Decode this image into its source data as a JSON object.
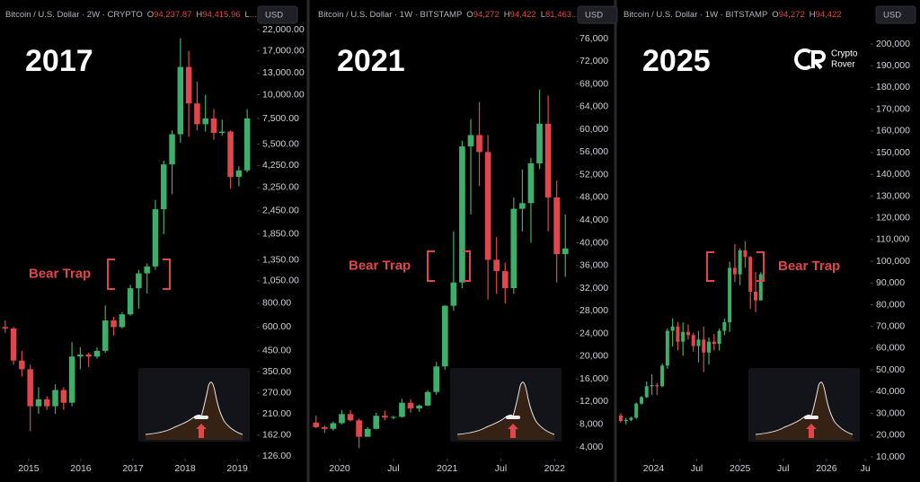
{
  "chart_data": [
    {
      "type": "candlestick",
      "header": "Bitcoin / U.S. Dollar · 2W · CRYPTO",
      "ohlc": [
        {
          "key": "O",
          "value": "94,237.87"
        },
        {
          "key": "H",
          "value": "94,415.96"
        },
        {
          "key": "L",
          "value": "..."
        }
      ],
      "currency": "USD",
      "label": "2017",
      "annotation": "Bear Trap",
      "log_scale": true,
      "grid": false,
      "up_color": "#3fae6a",
      "down_color": "#e0474c",
      "ohlc_color": "#e0474c",
      "x": [
        2014.55,
        2014.71,
        2014.87,
        2015.03,
        2015.19,
        2015.35,
        2015.51,
        2015.67,
        2015.83,
        2015.99,
        2016.15,
        2016.31,
        2016.47,
        2016.63,
        2016.79,
        2016.95,
        2017.11,
        2017.27,
        2017.43,
        2017.59,
        2017.75,
        2017.91,
        2018.07,
        2018.23,
        2018.39,
        2018.55,
        2018.71,
        2018.87,
        2019.03,
        2019.19
      ],
      "open": [
        600,
        590,
        400,
        360,
        230,
        250,
        230,
        280,
        240,
        420,
        430,
        420,
        450,
        650,
        600,
        700,
        960,
        1150,
        1250,
        2500,
        4300,
        6200,
        14000,
        9000,
        7000,
        7500,
        6300,
        6400,
        3700,
        4000
      ],
      "high": [
        650,
        600,
        450,
        380,
        290,
        260,
        300,
        290,
        500,
        470,
        440,
        470,
        780,
        680,
        720,
        1000,
        1200,
        1300,
        2800,
        4500,
        6500,
        19800,
        17000,
        11700,
        10000,
        8400,
        7400,
        6500,
        4200,
        8400
      ],
      "low": [
        560,
        380,
        330,
        170,
        210,
        220,
        210,
        220,
        230,
        360,
        370,
        410,
        440,
        540,
        590,
        690,
        750,
        900,
        1200,
        1850,
        3000,
        5600,
        6000,
        6500,
        6400,
        5800,
        6100,
        3200,
        3300,
        3900
      ],
      "close": [
        590,
        400,
        360,
        230,
        250,
        230,
        280,
        240,
        420,
        430,
        420,
        450,
        650,
        600,
        700,
        960,
        1150,
        1250,
        2500,
        4300,
        6200,
        14000,
        9000,
        7000,
        7500,
        6300,
        6400,
        3700,
        4000,
        7500
      ],
      "xlim": [
        2014.45,
        2019.36
      ],
      "xticks": [
        2015,
        2016,
        2017,
        2018,
        2019
      ],
      "ylim": [
        126,
        22000
      ],
      "yticks": [
        {
          "value": 126,
          "label": "126.00"
        },
        {
          "value": 162,
          "label": "162.00"
        },
        {
          "value": 210,
          "label": "210.00"
        },
        {
          "value": 270,
          "label": "270.00"
        },
        {
          "value": 350,
          "label": "350.00"
        },
        {
          "value": 450,
          "label": "450.00"
        },
        {
          "value": 600,
          "label": "600.00"
        },
        {
          "value": 800,
          "label": "800.00"
        },
        {
          "value": 1050,
          "label": "1,050.00"
        },
        {
          "value": 1350,
          "label": "1,350.00"
        },
        {
          "value": 1850,
          "label": "1,850.00"
        },
        {
          "value": 2450,
          "label": "2,450.00"
        },
        {
          "value": 3250,
          "label": "3,250.00"
        },
        {
          "value": 4250,
          "label": "4,250.00"
        },
        {
          "value": 5500,
          "label": "5,500.00"
        },
        {
          "value": 7500,
          "label": "7,500.00"
        },
        {
          "value": 10000,
          "label": "10,000.00"
        },
        {
          "value": 13000,
          "label": "13,000.00"
        },
        {
          "value": 17000,
          "label": "17,000.00"
        },
        {
          "value": 22000,
          "label": "22,000.00"
        }
      ]
    },
    {
      "type": "candlestick",
      "header": "Bitcoin / U.S. Dollar · 1W · BITSTAMP",
      "ohlc": [
        {
          "key": "O",
          "value": "94,272"
        },
        {
          "key": "H",
          "value": "94,422"
        },
        {
          "key": "L",
          "value": "81,463..."
        }
      ],
      "currency": "USD",
      "label": "2021",
      "annotation": "Bear Trap",
      "log_scale": false,
      "grid": false,
      "up_color": "#3fae6a",
      "down_color": "#e0474c",
      "ohlc_color": "#e0474c",
      "x": [
        2019.78,
        2019.86,
        2019.94,
        2020.02,
        2020.1,
        2020.18,
        2020.26,
        2020.34,
        2020.42,
        2020.5,
        2020.58,
        2020.66,
        2020.74,
        2020.82,
        2020.9,
        2020.98,
        2021.06,
        2021.14,
        2021.22,
        2021.3,
        2021.38,
        2021.46,
        2021.54,
        2021.62,
        2021.7,
        2021.78,
        2021.86,
        2021.94,
        2022.02,
        2022.1
      ],
      "open": [
        8300,
        7500,
        7200,
        8200,
        9800,
        8700,
        5800,
        7200,
        9500,
        9200,
        9300,
        11800,
        10800,
        11300,
        13700,
        18200,
        28900,
        33000,
        57000,
        59000,
        56000,
        37000,
        35000,
        32000,
        46000,
        47000,
        54000,
        61000,
        48000,
        38000
      ],
      "high": [
        9500,
        7800,
        8500,
        10500,
        10500,
        9000,
        7500,
        10000,
        10400,
        9500,
        12500,
        12400,
        11500,
        14000,
        19000,
        29000,
        42000,
        58000,
        61800,
        64800,
        59000,
        41000,
        36500,
        48000,
        52900,
        55000,
        67000,
        66000,
        51000,
        45000
      ],
      "low": [
        7300,
        6500,
        6900,
        8000,
        8500,
        3800,
        5800,
        7100,
        8700,
        8900,
        9200,
        10000,
        10200,
        11200,
        13200,
        17600,
        28000,
        32000,
        45000,
        50000,
        30000,
        31000,
        29300,
        31000,
        42000,
        40000,
        53000,
        42000,
        33000,
        34000
      ],
      "close": [
        7500,
        7200,
        8200,
        9800,
        8700,
        5800,
        7200,
        9500,
        9200,
        9300,
        11800,
        10800,
        11300,
        13700,
        18200,
        28900,
        33000,
        57000,
        59000,
        56000,
        37000,
        35000,
        32000,
        46000,
        47000,
        54000,
        61000,
        48000,
        38000,
        39000
      ],
      "xlim": [
        2019.74,
        2022.19
      ],
      "xticks": [
        2020,
        {
          "value": 2020.5,
          "label": "Jul"
        },
        2021,
        {
          "value": 2021.5,
          "label": "Jul"
        },
        2022
      ],
      "ylim": [
        4000,
        76000
      ],
      "yticks": [
        {
          "value": 4000,
          "label": "4,000"
        },
        {
          "value": 8000,
          "label": "8,000"
        },
        {
          "value": 12000,
          "label": "12,000"
        },
        {
          "value": 16000,
          "label": "16,000"
        },
        {
          "value": 20000,
          "label": "20,000"
        },
        {
          "value": 24000,
          "label": "24,000"
        },
        {
          "value": 28000,
          "label": "28,000"
        },
        {
          "value": 32000,
          "label": "32,000"
        },
        {
          "value": 36000,
          "label": "36,000"
        },
        {
          "value": 40000,
          "label": "40,000"
        },
        {
          "value": 44000,
          "label": "44,000"
        },
        {
          "value": 48000,
          "label": "48,000"
        },
        {
          "value": 52000,
          "label": "52,000"
        },
        {
          "value": 56000,
          "label": "56,000"
        },
        {
          "value": 60000,
          "label": "60,000"
        },
        {
          "value": 64000,
          "label": "64,000"
        },
        {
          "value": 68000,
          "label": "68,000"
        },
        {
          "value": 72000,
          "label": "72,000"
        },
        {
          "value": 76000,
          "label": "76,000"
        }
      ]
    },
    {
      "type": "candlestick",
      "header": "Bitcoin / U.S. Dollar · 1W · BITSTAMP",
      "ohlc": [
        {
          "key": "O",
          "value": "94,272"
        },
        {
          "key": "H",
          "value": "94,422"
        }
      ],
      "currency": "USD",
      "label": "2025",
      "annotation": "Bear Trap",
      "logo": [
        "Crypto",
        "Rover"
      ],
      "log_scale": false,
      "grid": false,
      "up_color": "#3fae6a",
      "down_color": "#e0474c",
      "ohlc_color": "#e0474c",
      "x": [
        2023.62,
        2023.68,
        2023.74,
        2023.8,
        2023.86,
        2023.92,
        2023.98,
        2024.04,
        2024.1,
        2024.16,
        2024.22,
        2024.28,
        2024.34,
        2024.4,
        2024.46,
        2024.52,
        2024.58,
        2024.64,
        2024.7,
        2024.76,
        2024.82,
        2024.88,
        2024.94,
        2025.0,
        2025.06,
        2025.12,
        2025.18,
        2025.24
      ],
      "open": [
        29000,
        26500,
        27000,
        28000,
        34500,
        37500,
        42500,
        43000,
        42500,
        52000,
        68000,
        70000,
        63000,
        67500,
        66000,
        61000,
        64000,
        58000,
        63000,
        62000,
        68000,
        72000,
        97000,
        94000,
        105000,
        102000,
        86000,
        82000
      ],
      "high": [
        30000,
        28000,
        28500,
        35000,
        38000,
        44700,
        48000,
        44000,
        53000,
        69000,
        73700,
        72000,
        71900,
        71000,
        67000,
        68000,
        70000,
        65000,
        66500,
        69000,
        73600,
        99800,
        108000,
        106000,
        109300,
        102500,
        95000,
        95000
      ],
      "low": [
        25800,
        25000,
        26500,
        27500,
        34000,
        37000,
        38500,
        38500,
        42000,
        50500,
        60800,
        59000,
        56500,
        64000,
        58400,
        53500,
        49000,
        52500,
        58900,
        58900,
        66000,
        67500,
        90500,
        89000,
        97000,
        78200,
        76600,
        82000
      ],
      "close": [
        26500,
        27000,
        28000,
        34500,
        37500,
        42500,
        43000,
        42500,
        52000,
        68000,
        70000,
        63000,
        67500,
        66000,
        61000,
        64000,
        58000,
        63000,
        62000,
        68000,
        72000,
        97000,
        94000,
        105000,
        102000,
        86000,
        82000,
        94000
      ],
      "xlim": [
        2023.59,
        2026.5
      ],
      "xticks": [
        2024,
        {
          "value": 2024.5,
          "label": "Jul"
        },
        2025,
        {
          "value": 2025.5,
          "label": "Jul"
        },
        2026,
        {
          "value": 2026.45,
          "label": "Ju"
        }
      ],
      "ylim": [
        10000,
        200000
      ],
      "yticks": [
        {
          "value": 10000,
          "label": "10,000"
        },
        {
          "value": 20000,
          "label": "20,000"
        },
        {
          "value": 30000,
          "label": "30,000"
        },
        {
          "value": 40000,
          "label": "40,000"
        },
        {
          "value": 50000,
          "label": "50,000"
        },
        {
          "value": 60000,
          "label": "60,000"
        },
        {
          "value": 70000,
          "label": "70,000"
        },
        {
          "value": 80000,
          "label": "80,000"
        },
        {
          "value": 90000,
          "label": "90,000"
        },
        {
          "value": 100000,
          "label": "100,000"
        },
        {
          "value": 110000,
          "label": "110,000"
        },
        {
          "value": 120000,
          "label": "120,000"
        },
        {
          "value": 130000,
          "label": "130,000"
        },
        {
          "value": 140000,
          "label": "140,000"
        },
        {
          "value": 150000,
          "label": "150,000"
        },
        {
          "value": 160000,
          "label": "160,000"
        },
        {
          "value": 170000,
          "label": "170,000"
        },
        {
          "value": 180000,
          "label": "180,000"
        },
        {
          "value": 190000,
          "label": "190,000"
        },
        {
          "value": 200000,
          "label": "200,000"
        }
      ]
    }
  ]
}
